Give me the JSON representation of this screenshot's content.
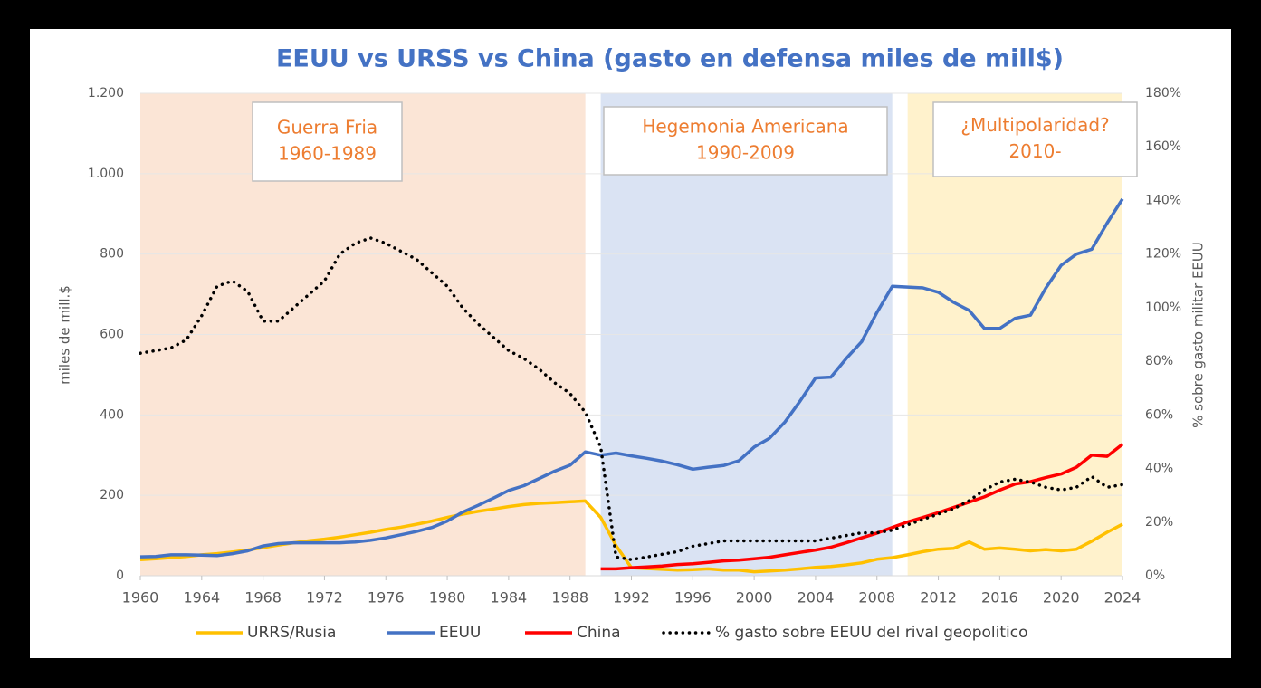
{
  "chart_data": {
    "type": "line",
    "title": "EEUU vs URSS vs China (gasto en defensa miles de mill$)",
    "y_label": "miles de mill.$",
    "y2_label": "% sobre gasto militar EEUU",
    "x": [
      1960,
      1961,
      1962,
      1963,
      1964,
      1965,
      1966,
      1967,
      1968,
      1969,
      1970,
      1971,
      1972,
      1973,
      1974,
      1975,
      1976,
      1977,
      1978,
      1979,
      1980,
      1981,
      1982,
      1983,
      1984,
      1985,
      1986,
      1987,
      1988,
      1989,
      1990,
      1991,
      1992,
      1993,
      1994,
      1995,
      1996,
      1997,
      1998,
      1999,
      2000,
      2001,
      2002,
      2003,
      2004,
      2005,
      2006,
      2007,
      2008,
      2009,
      2010,
      2011,
      2012,
      2013,
      2014,
      2015,
      2016,
      2017,
      2018,
      2019,
      2020,
      2021,
      2022,
      2023,
      2024
    ],
    "xlim": [
      1960,
      2024
    ],
    "xticks": [
      1960,
      1964,
      1968,
      1972,
      1976,
      1980,
      1984,
      1988,
      1992,
      1996,
      2000,
      2004,
      2008,
      2012,
      2016,
      2020,
      2024
    ],
    "ylim": [
      0,
      1200
    ],
    "yticks": [
      0,
      200,
      400,
      600,
      800,
      {
        "value": 1000,
        "label": "1.000"
      },
      {
        "value": 1200,
        "label": "1.200"
      }
    ],
    "y2lim": [
      0,
      180
    ],
    "y2ticks": [
      {
        "value": 0,
        "label": "0%"
      },
      {
        "value": 20,
        "label": "20%"
      },
      {
        "value": 40,
        "label": "40%"
      },
      {
        "value": 60,
        "label": "60%"
      },
      {
        "value": 80,
        "label": "80%"
      },
      {
        "value": 100,
        "label": "100%"
      },
      {
        "value": 120,
        "label": "120%"
      },
      {
        "value": 140,
        "label": "140%"
      },
      {
        "value": 160,
        "label": "160%"
      },
      {
        "value": 180,
        "label": "180%"
      }
    ],
    "grid": true,
    "legend": "bottom",
    "regions": [
      {
        "lines": [
          "Guerra Fria",
          "1960-1989"
        ],
        "start": 1960,
        "end": 1989,
        "color": "#fbe5d6"
      },
      {
        "lines": [
          "Hegemonia Americana",
          "1990-2009"
        ],
        "start": 1990,
        "end": 2009,
        "color": "#dae3f3"
      },
      {
        "lines": [
          "¿Multipolaridad?",
          "2010-"
        ],
        "start": 2010,
        "end": 2024,
        "color": "#fff2cc"
      }
    ],
    "series": [
      {
        "name": "URRS/Rusia",
        "color": "#ffc000",
        "style": "solid",
        "values": [
          40,
          42,
          45,
          48,
          52,
          55,
          59,
          64,
          70,
          76,
          82,
          87,
          91,
          96,
          102,
          108,
          115,
          121,
          128,
          136,
          145,
          153,
          160,
          166,
          172,
          177,
          180,
          182,
          184,
          186,
          145,
          75,
          20,
          18,
          16,
          14,
          15,
          17,
          14,
          14,
          10,
          12,
          14,
          17,
          21,
          23,
          27,
          32,
          41,
          45,
          52,
          60,
          66,
          68,
          84,
          66,
          69,
          66,
          62,
          65,
          62,
          66,
          86,
          108,
          128
        ]
      },
      {
        "name": "EEUU",
        "color": "#4472c4",
        "style": "solid",
        "values": [
          47,
          48,
          52,
          52,
          51,
          50,
          55,
          62,
          74,
          80,
          82,
          82,
          82,
          82,
          84,
          88,
          94,
          102,
          110,
          120,
          136,
          158,
          175,
          193,
          212,
          224,
          242,
          260,
          275,
          308,
          300,
          305,
          298,
          292,
          285,
          276,
          265,
          270,
          274,
          286,
          320,
          342,
          382,
          435,
          492,
          494,
          540,
          582,
          655,
          720,
          718,
          716,
          705,
          680,
          660,
          615,
          615,
          640,
          648,
          715,
          772,
          800,
          812,
          877,
          937
        ]
      },
      {
        "name": "China",
        "color": "#ff0000",
        "style": "solid",
        "values": [
          null,
          null,
          null,
          null,
          null,
          null,
          null,
          null,
          null,
          null,
          null,
          null,
          null,
          null,
          null,
          null,
          null,
          null,
          null,
          null,
          null,
          null,
          null,
          null,
          null,
          null,
          null,
          null,
          null,
          null,
          17,
          17,
          20,
          22,
          24,
          28,
          30,
          33,
          37,
          39,
          42,
          46,
          52,
          58,
          64,
          71,
          82,
          94,
          106,
          120,
          134,
          145,
          157,
          170,
          183,
          196,
          213,
          228,
          234,
          244,
          253,
          270,
          300,
          297,
          327
        ]
      },
      {
        "name": "% gasto sobre EEUU del rival geopolitico",
        "color": "#000000",
        "style": "dotted",
        "axis": "y2",
        "values": [
          83,
          84,
          85,
          88,
          97,
          108,
          110,
          106,
          95,
          95,
          100,
          105,
          110,
          120,
          124,
          126,
          124,
          121,
          118,
          113,
          108,
          100,
          94,
          89,
          84,
          81,
          77,
          72,
          68,
          61,
          48,
          7,
          6,
          7,
          8,
          9,
          11,
          12,
          13,
          13,
          13,
          13,
          13,
          13,
          13,
          14,
          15,
          16,
          16,
          17,
          19,
          21,
          23,
          25,
          28,
          32,
          35,
          36,
          35,
          33,
          32,
          33,
          37,
          33,
          34
        ]
      }
    ]
  }
}
